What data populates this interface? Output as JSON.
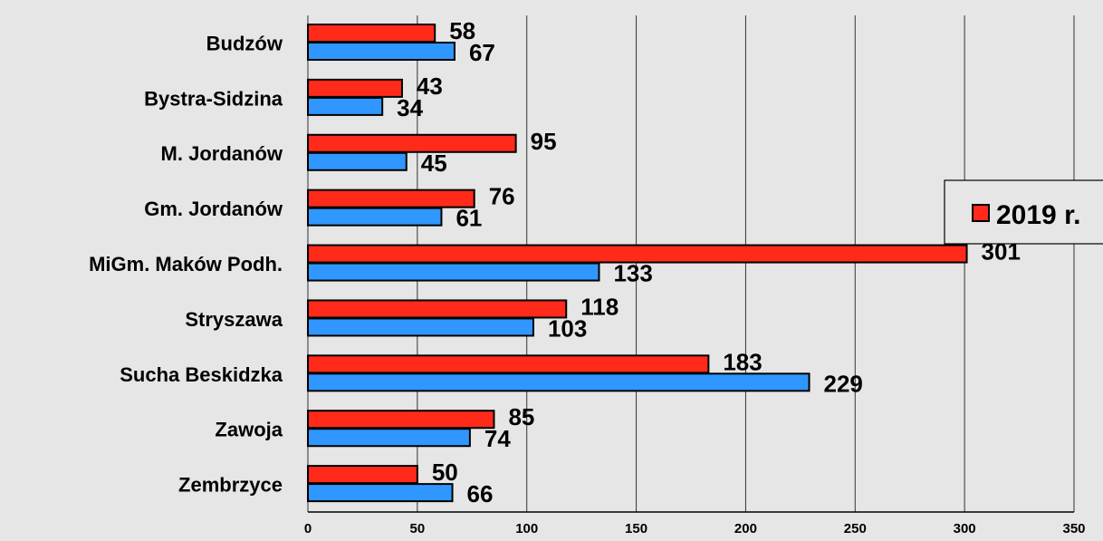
{
  "chart_data": {
    "type": "bar",
    "orientation": "horizontal",
    "categories": [
      "Budzów",
      "Bystra-Sidzina",
      "M. Jordanów",
      "Gm. Jordanów",
      "MiGm. Maków Podh.",
      "Stryszawa",
      "Sucha Beskidzka",
      "Zawoja",
      "Zembrzyce"
    ],
    "series": [
      {
        "name": "2019 r.",
        "color": "#ff2a1a",
        "values": [
          58,
          43,
          95,
          76,
          301,
          118,
          183,
          85,
          50
        ],
        "value_labels": [
          "58",
          "43",
          "95",
          "76",
          "301",
          "118",
          "183",
          "85",
          "50"
        ]
      },
      {
        "name": "",
        "color": "#2f97ff",
        "values": [
          67,
          34,
          45,
          61,
          133,
          103,
          229,
          74,
          66
        ],
        "value_labels": [
          "67",
          "34",
          "45",
          "61",
          "133",
          "103",
          "229",
          "74",
          "66"
        ]
      }
    ],
    "xlim": [
      0,
      350
    ],
    "ticks": [
      0,
      50,
      100,
      150,
      200,
      250,
      300,
      350
    ],
    "tick_labels": [
      "0",
      "50",
      "100",
      "150",
      "200",
      "250",
      "300",
      "350"
    ],
    "title": "",
    "xlabel": "",
    "ylabel": "",
    "grid": "vertical",
    "legend": {
      "position": "right",
      "entries": [
        "2019 r."
      ]
    }
  }
}
